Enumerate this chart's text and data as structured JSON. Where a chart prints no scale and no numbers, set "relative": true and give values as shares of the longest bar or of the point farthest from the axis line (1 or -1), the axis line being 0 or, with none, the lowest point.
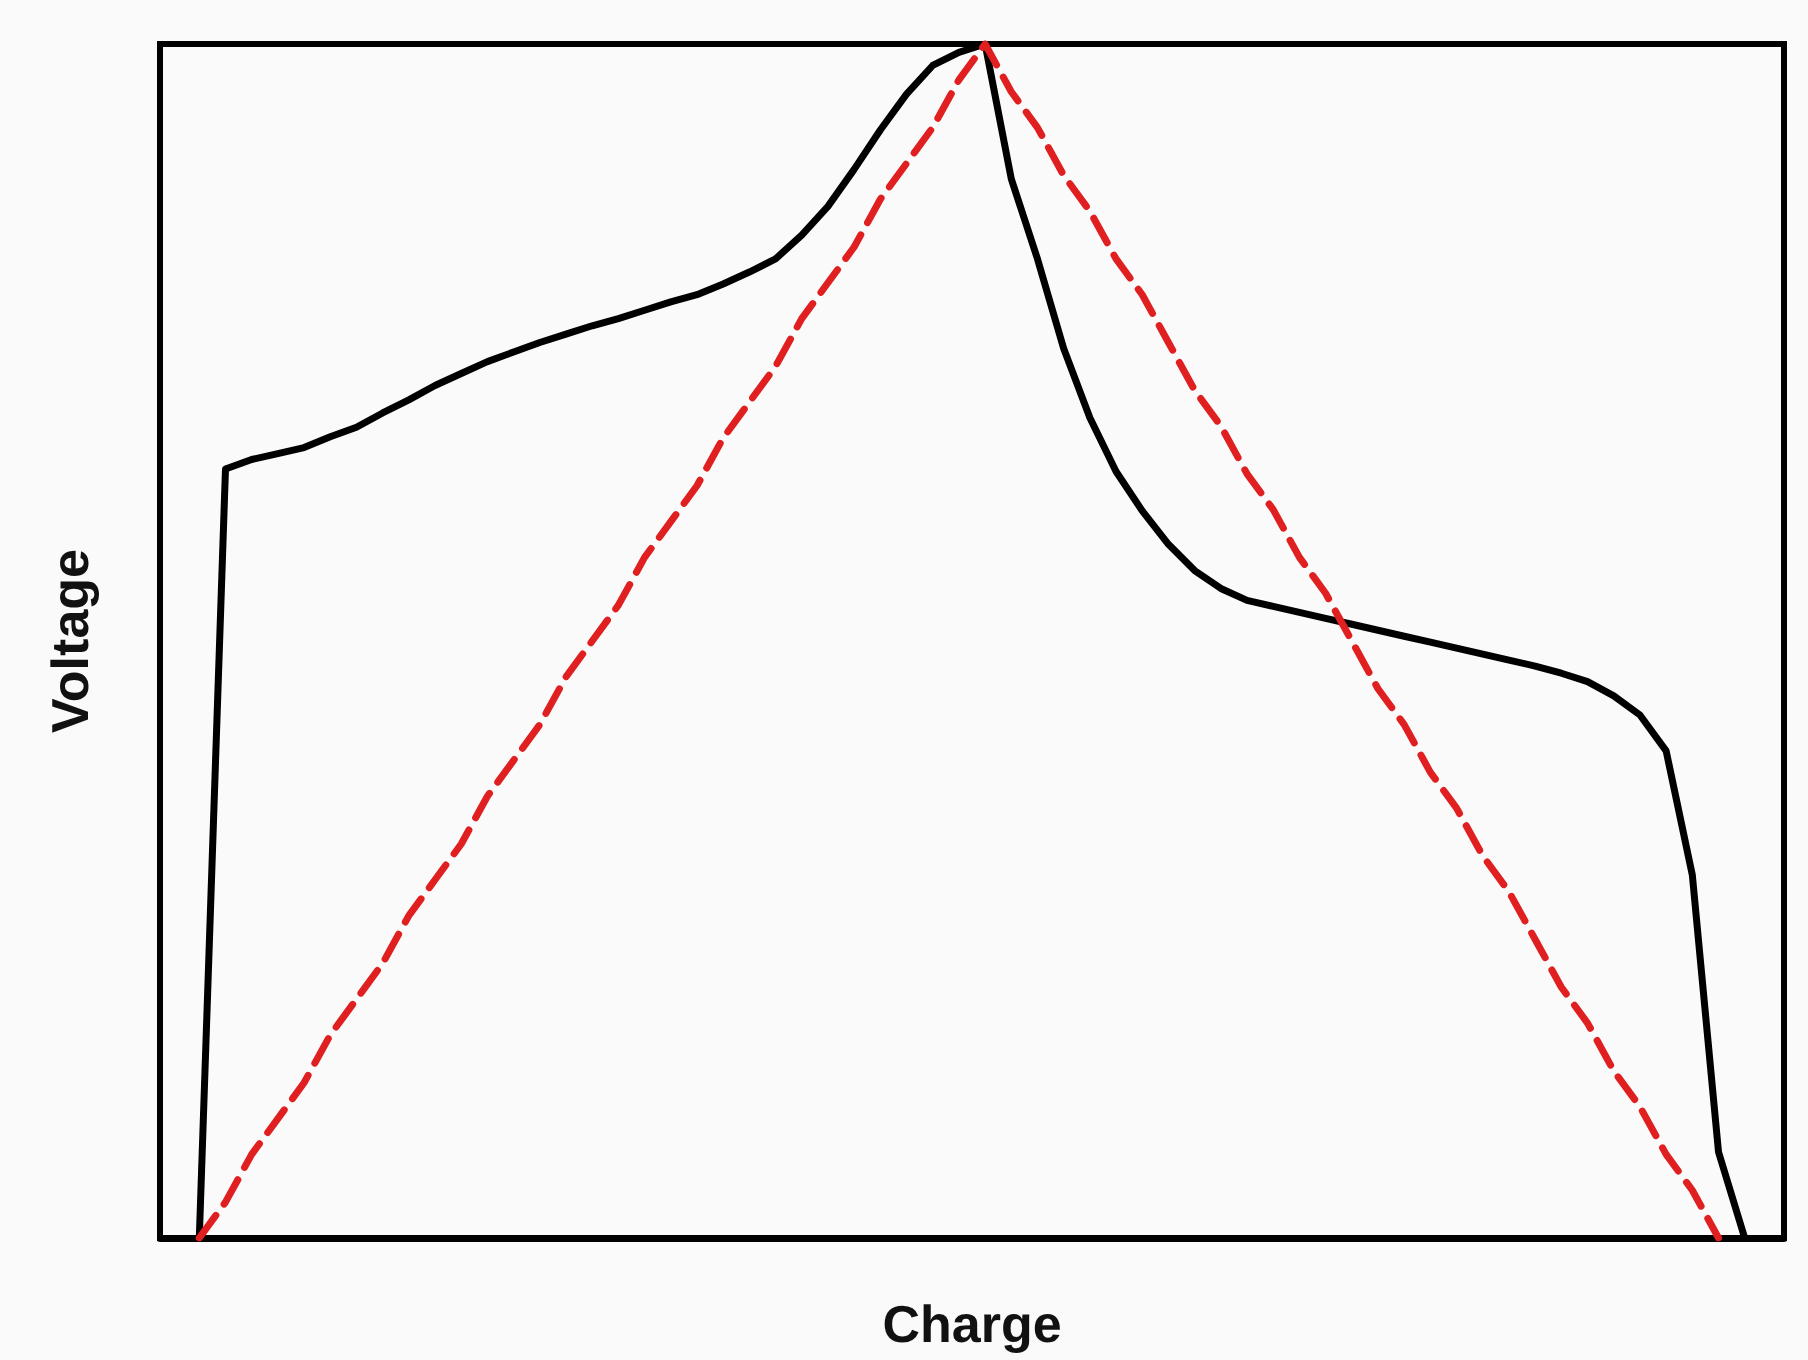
{
  "chart_data": {
    "type": "line",
    "relative": true,
    "xlabel": "Charge",
    "ylabel": "Voltage",
    "grid": false,
    "tick_labels": false,
    "marker": "none",
    "categories": [
      null,
      null,
      null,
      null,
      null,
      null,
      null,
      null,
      null,
      null,
      null,
      null,
      null,
      null,
      null,
      null,
      null,
      null,
      null,
      null,
      null,
      null,
      null,
      null,
      null,
      null,
      null,
      null,
      null,
      null,
      null,
      null,
      null,
      null,
      null,
      null,
      null,
      null,
      null,
      null,
      null,
      null,
      null,
      null,
      null,
      null,
      null,
      null,
      null,
      null,
      null,
      null,
      null,
      null,
      null,
      null,
      null,
      null,
      null,
      null,
      null,
      null
    ],
    "series": [
      {
        "color": "#000000",
        "line_style": "solid",
        "values": [
          null,
          0,
          0.644,
          0.652,
          0.657,
          0.662,
          0.671,
          0.679,
          0.691,
          0.702,
          0.714,
          0.724,
          0.734,
          0.742,
          0.75,
          0.757,
          0.764,
          0.77,
          0.777,
          0.784,
          0.79,
          0.799,
          0.809,
          0.82,
          0.84,
          0.864,
          0.895,
          0.928,
          0.958,
          0.982,
          0.993,
          1,
          0.887,
          0.82,
          0.745,
          0.687,
          0.642,
          0.609,
          0.581,
          0.559,
          0.544,
          0.534,
          0.529,
          0.524,
          0.519,
          0.514,
          0.509,
          0.504,
          0.499,
          0.494,
          0.489,
          0.484,
          0.479,
          0.473,
          0.466,
          0.454,
          0.438,
          0.408,
          0.304,
          0.072,
          0,
          null
        ]
      },
      {
        "color": "#e02020",
        "line_style": "dashed",
        "values": [
          null,
          0,
          0.03,
          0.07,
          0.1,
          0.13,
          0.17,
          0.2,
          0.23,
          0.27,
          0.3,
          0.33,
          0.37,
          0.4,
          0.43,
          0.47,
          0.5,
          0.53,
          0.57,
          0.6,
          0.63,
          0.67,
          0.7,
          0.73,
          0.77,
          0.8,
          0.83,
          0.87,
          0.9,
          0.93,
          0.97,
          1,
          0.96,
          0.93,
          0.89,
          0.86,
          0.82,
          0.79,
          0.75,
          0.71,
          0.68,
          0.64,
          0.61,
          0.57,
          0.54,
          0.5,
          0.46,
          0.43,
          0.39,
          0.36,
          0.32,
          0.29,
          0.25,
          0.21,
          0.18,
          0.14,
          0.11,
          0.07,
          0.04,
          0,
          null,
          null
        ]
      }
    ]
  }
}
